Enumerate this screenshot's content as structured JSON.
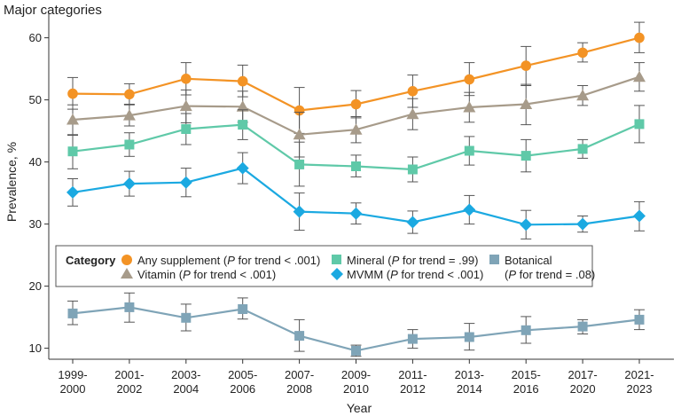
{
  "panel_title": "Major categories",
  "legend": {
    "title": "Category",
    "entries": [
      {
        "series": "Any supplement",
        "p_label": "P",
        "p_note": " for trend < .001)"
      },
      {
        "series": "Vitamin",
        "p_label": "P",
        "p_note": " for trend < .001)"
      },
      {
        "series": "Mineral",
        "p_label": "P",
        "p_note": " for trend = .99)"
      },
      {
        "series": "MVMM",
        "p_label": "P",
        "p_note": " for trend < .001)"
      },
      {
        "series": "Botanical",
        "p_label": "P",
        "p_note": " for trend = .08)"
      }
    ]
  },
  "chart_data": {
    "type": "line",
    "xlabel": "Year",
    "ylabel": "Prevalence, %",
    "ylim": [
      6,
      62
    ],
    "yticks": [
      10,
      20,
      30,
      40,
      50,
      60
    ],
    "grid": false,
    "legend_position": "center",
    "categories": [
      [
        "1999-",
        "2000"
      ],
      [
        "2001-",
        "2002"
      ],
      [
        "2003-",
        "2004"
      ],
      [
        "2005-",
        "2006"
      ],
      [
        "2007-",
        "2008"
      ],
      [
        "2009-",
        "2010"
      ],
      [
        "2011-",
        "2012"
      ],
      [
        "2013-",
        "2014"
      ],
      [
        "2015-",
        "2016"
      ],
      [
        "2017-",
        "2020"
      ],
      [
        "2021-",
        "2023"
      ]
    ],
    "series": [
      {
        "name": "Any supplement",
        "color": "#f39325",
        "marker": "circle",
        "values": [
          51.0,
          50.9,
          53.4,
          53.0,
          48.3,
          49.3,
          51.4,
          53.3,
          55.5,
          57.6,
          60.0
        ],
        "lower": [
          48.5,
          49.2,
          50.8,
          50.5,
          44.6,
          47.1,
          48.8,
          50.7,
          52.3,
          56.1,
          57.6
        ],
        "upper": [
          53.6,
          52.6,
          56.0,
          55.6,
          52.0,
          51.5,
          54.0,
          56.0,
          58.6,
          59.2,
          62.5
        ]
      },
      {
        "name": "Vitamin",
        "color": "#a79b8a",
        "marker": "triangle",
        "values": [
          46.8,
          47.5,
          49.0,
          48.9,
          44.4,
          45.2,
          47.7,
          48.8,
          49.3,
          50.7,
          53.7
        ],
        "lower": [
          44.3,
          45.8,
          46.3,
          46.4,
          40.8,
          43.1,
          45.2,
          46.4,
          46.0,
          49.1,
          51.4
        ],
        "upper": [
          49.2,
          49.3,
          51.6,
          51.4,
          48.0,
          47.3,
          50.2,
          51.2,
          52.5,
          52.3,
          56.0
        ]
      },
      {
        "name": "Mineral",
        "color": "#5fc9a8",
        "marker": "square",
        "values": [
          41.7,
          42.8,
          45.3,
          46.0,
          39.6,
          39.3,
          38.8,
          41.8,
          41.0,
          42.1,
          46.1
        ],
        "lower": [
          38.9,
          40.9,
          42.8,
          43.6,
          36.1,
          37.6,
          36.8,
          39.5,
          38.4,
          40.6,
          43.1
        ],
        "upper": [
          44.4,
          44.7,
          47.8,
          48.4,
          43.2,
          41.1,
          40.8,
          44.1,
          43.6,
          43.6,
          49.1
        ]
      },
      {
        "name": "MVMM",
        "color": "#1ba9e1",
        "marker": "diamond",
        "values": [
          35.1,
          36.5,
          36.7,
          39.0,
          32.0,
          31.7,
          30.3,
          32.3,
          29.9,
          30.0,
          31.3
        ],
        "lower": [
          32.9,
          34.5,
          34.4,
          36.5,
          29.0,
          30.0,
          28.5,
          30.0,
          27.6,
          28.7,
          28.9
        ],
        "upper": [
          37.3,
          38.5,
          39.0,
          41.5,
          35.0,
          33.4,
          32.1,
          34.6,
          32.2,
          31.3,
          33.6
        ]
      },
      {
        "name": "Botanical",
        "color": "#7fa4b7",
        "marker": "square",
        "values": [
          15.6,
          16.6,
          14.9,
          16.3,
          12.0,
          9.6,
          11.5,
          11.8,
          12.9,
          13.5,
          14.6
        ],
        "lower": [
          13.8,
          14.2,
          12.8,
          14.7,
          9.5,
          8.7,
          10.0,
          9.7,
          10.8,
          12.3,
          13.0
        ],
        "upper": [
          17.6,
          18.9,
          17.1,
          18.1,
          14.6,
          10.5,
          13.0,
          14.0,
          15.1,
          14.6,
          16.2
        ]
      }
    ]
  }
}
